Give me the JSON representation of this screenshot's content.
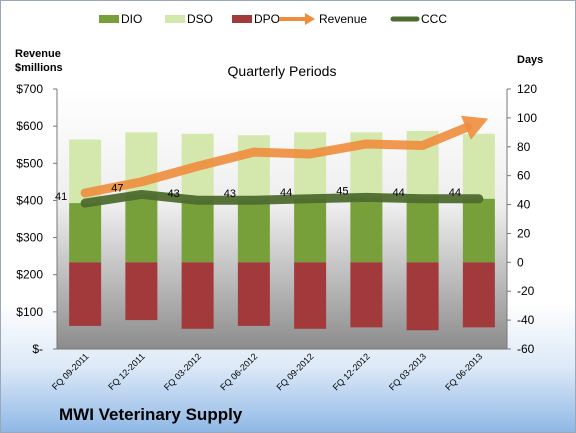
{
  "chart_data": {
    "type": "bar",
    "title": "Quarterly Periods",
    "company": "MWI Veterinary Supply",
    "y_left_label": [
      "Revenue",
      "$millions"
    ],
    "y_right_label": "Days",
    "y_left_ticks": [
      "$-",
      "$100",
      "$200",
      "$300",
      "$400",
      "$500",
      "$600",
      "$700"
    ],
    "y_right_ticks": [
      "-60",
      "-40",
      "-20",
      "0",
      "20",
      "40",
      "60",
      "80",
      "100",
      "120"
    ],
    "ylim_left": [
      0,
      700
    ],
    "ylim_right": [
      -60,
      120
    ],
    "categories": [
      "FQ 09-2011",
      "FQ 12-2011",
      "FQ 03-2012",
      "FQ 06-2012",
      "FQ 09-2012",
      "FQ 12-2012",
      "FQ 03-2013",
      "FQ 06-2013"
    ],
    "legend": [
      {
        "name": "DIO",
        "color": "#77a03a",
        "kind": "box"
      },
      {
        "name": "DSO",
        "color": "#d4e7ad",
        "kind": "box"
      },
      {
        "name": "DPO",
        "color": "#a2393a",
        "kind": "box"
      },
      {
        "name": "Revenue",
        "color": "#ef8d3d",
        "kind": "arrow"
      },
      {
        "name": "CCC",
        "color": "#4e6b2f",
        "kind": "line"
      }
    ],
    "series": [
      {
        "name": "DIO",
        "axis": "days",
        "values": [
          41,
          47,
          43,
          43,
          44,
          45,
          44,
          44
        ]
      },
      {
        "name": "DSO",
        "axis": "days",
        "values": [
          44,
          43,
          46,
          45,
          46,
          45,
          47,
          45
        ]
      },
      {
        "name": "DPO",
        "axis": "days",
        "values": [
          -44,
          -40,
          -46,
          -44,
          -46,
          -45,
          -47,
          -45
        ]
      },
      {
        "name": "Revenue",
        "axis": "revenue",
        "values": [
          420,
          450,
          492,
          530,
          525,
          552,
          548,
          610
        ]
      },
      {
        "name": "CCC",
        "axis": "days",
        "values": [
          41,
          47,
          43,
          43,
          44,
          45,
          44,
          44
        ]
      }
    ],
    "data_labels": [
      "41",
      "47",
      "43",
      "43",
      "44",
      "45",
      "44",
      "44"
    ],
    "grid": false,
    "legend_position": "top"
  }
}
